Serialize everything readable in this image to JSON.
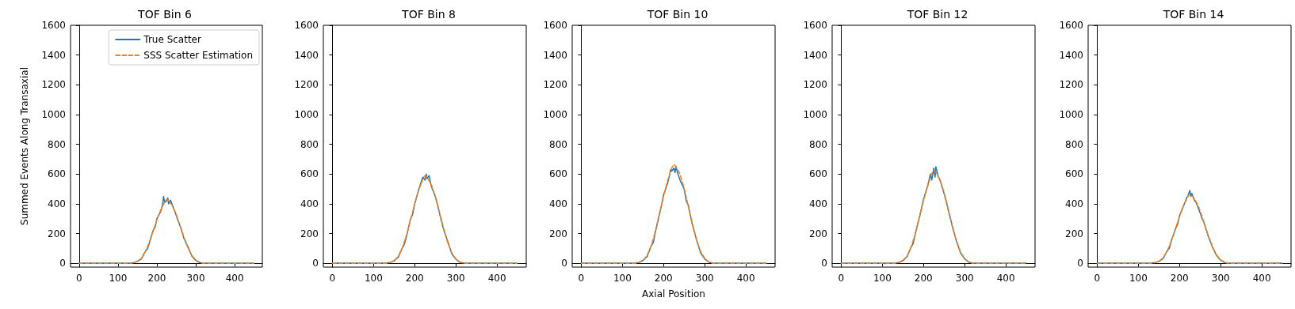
{
  "chart_data": [
    {
      "type": "line",
      "title": "TOF Bin 6",
      "ylabel": "Summed Events Along Transaxial",
      "xlim": [
        -22,
        471
      ],
      "xticks": [
        0,
        100,
        200,
        300,
        400
      ],
      "ylim": [
        -25,
        1600
      ],
      "yticks": [
        0,
        200,
        400,
        600,
        800,
        1000,
        1200,
        1400,
        1600
      ],
      "marker": "none",
      "legend": "top right",
      "series": [
        {
          "name": "True Scatter",
          "color": "#1f77b4",
          "line_style": "solid",
          "x": [
            0,
            100,
            130,
            140,
            150,
            160,
            170,
            175,
            180,
            190,
            195,
            200,
            210,
            215,
            217,
            220,
            225,
            228,
            230,
            235,
            240,
            250,
            255,
            260,
            270,
            280,
            290,
            300,
            310,
            320,
            350,
            449
          ],
          "values": [
            2,
            1,
            2,
            5,
            14,
            30,
            80,
            95,
            130,
            220,
            240,
            300,
            350,
            400,
            450,
            410,
            420,
            440,
            400,
            425,
            390,
            320,
            280,
            250,
            165,
            110,
            48,
            20,
            5,
            2,
            1,
            2
          ]
        },
        {
          "name": "SSS Scatter Estimation",
          "color": "#ff7f0e",
          "line_style": "dashed",
          "x": [
            0,
            100,
            130,
            140,
            150,
            160,
            170,
            180,
            190,
            200,
            210,
            220,
            225,
            230,
            240,
            250,
            260,
            270,
            280,
            290,
            300,
            310,
            320,
            350,
            449
          ],
          "values": [
            0,
            0,
            0,
            4,
            13,
            34,
            77,
            138,
            215,
            292,
            361,
            413,
            430,
            421,
            387,
            327,
            249,
            172,
            103,
            52,
            22,
            6,
            0,
            0,
            0
          ]
        }
      ]
    },
    {
      "type": "line",
      "title": "TOF Bin 8",
      "xlim": [
        -22,
        471
      ],
      "xticks": [
        0,
        100,
        200,
        300,
        400
      ],
      "ylim": [
        -25,
        1600
      ],
      "yticks": [
        0,
        200,
        400,
        600,
        800,
        1000,
        1200,
        1400,
        1600
      ],
      "marker": "none",
      "series": [
        {
          "color": "#1f77b4",
          "line_style": "solid",
          "x": [
            0,
            100,
            130,
            140,
            150,
            160,
            170,
            175,
            180,
            190,
            195,
            200,
            210,
            215,
            217,
            220,
            225,
            228,
            230,
            235,
            240,
            250,
            255,
            260,
            270,
            280,
            290,
            300,
            310,
            320,
            350,
            449
          ],
          "values": [
            2,
            1,
            2,
            6,
            18,
            42,
            105,
            130,
            180,
            300,
            330,
            400,
            500,
            540,
            560,
            580,
            560,
            600,
            570,
            590,
            520,
            450,
            400,
            340,
            230,
            150,
            65,
            28,
            7,
            2,
            1,
            2
          ]
        },
        {
          "color": "#ff7f0e",
          "line_style": "dashed",
          "x": [
            0,
            100,
            130,
            140,
            150,
            160,
            170,
            180,
            190,
            200,
            210,
            220,
            225,
            230,
            240,
            250,
            260,
            270,
            280,
            290,
            300,
            310,
            320,
            350,
            449
          ],
          "values": [
            0,
            0,
            0,
            5,
            18,
            47,
            106,
            189,
            295,
            401,
            495,
            567,
            590,
            578,
            531,
            449,
            342,
            236,
            141,
            71,
            30,
            8,
            0,
            0,
            0
          ]
        }
      ]
    },
    {
      "type": "line",
      "title": "TOF Bin 10",
      "xlabel": "Axial Position",
      "xlim": [
        -22,
        471
      ],
      "xticks": [
        0,
        100,
        200,
        300,
        400
      ],
      "ylim": [
        -25,
        1600
      ],
      "yticks": [
        0,
        200,
        400,
        600,
        800,
        1000,
        1200,
        1400,
        1600
      ],
      "marker": "none",
      "series": [
        {
          "color": "#1f77b4",
          "line_style": "solid",
          "x": [
            0,
            100,
            130,
            140,
            150,
            160,
            170,
            175,
            180,
            190,
            195,
            200,
            210,
            215,
            217,
            220,
            225,
            228,
            230,
            235,
            240,
            250,
            255,
            260,
            270,
            280,
            290,
            300,
            310,
            320,
            350,
            449
          ],
          "values": [
            2,
            1,
            2,
            6,
            20,
            45,
            118,
            140,
            210,
            330,
            390,
            460,
            540,
            600,
            630,
            620,
            640,
            610,
            650,
            600,
            560,
            500,
            420,
            390,
            260,
            160,
            70,
            30,
            8,
            2,
            1,
            2
          ]
        },
        {
          "color": "#ff7f0e",
          "line_style": "dashed",
          "x": [
            0,
            100,
            130,
            140,
            150,
            160,
            170,
            180,
            190,
            200,
            210,
            220,
            225,
            230,
            240,
            250,
            260,
            270,
            280,
            290,
            300,
            310,
            320,
            350,
            449
          ],
          "values": [
            0,
            0,
            0,
            6,
            20,
            53,
            119,
            213,
            333,
            452,
            558,
            643,
            665,
            651,
            599,
            506,
            385,
            266,
            159,
            80,
            34,
            9,
            0,
            0,
            0
          ]
        }
      ]
    },
    {
      "type": "line",
      "title": "TOF Bin 12",
      "xlim": [
        -22,
        471
      ],
      "xticks": [
        0,
        100,
        200,
        300,
        400
      ],
      "ylim": [
        -25,
        1600
      ],
      "yticks": [
        0,
        200,
        400,
        600,
        800,
        1000,
        1200,
        1400,
        1600
      ],
      "marker": "none",
      "series": [
        {
          "color": "#1f77b4",
          "line_style": "solid",
          "x": [
            0,
            100,
            130,
            140,
            150,
            160,
            170,
            175,
            180,
            190,
            195,
            200,
            210,
            215,
            217,
            220,
            225,
            228,
            230,
            235,
            240,
            250,
            255,
            260,
            270,
            280,
            290,
            300,
            310,
            320,
            350,
            449
          ],
          "values": [
            2,
            1,
            2,
            6,
            19,
            45,
            110,
            135,
            200,
            310,
            370,
            430,
            520,
            580,
            600,
            560,
            640,
            580,
            650,
            590,
            560,
            470,
            420,
            360,
            250,
            150,
            70,
            30,
            8,
            2,
            1,
            2
          ]
        },
        {
          "color": "#ff7f0e",
          "line_style": "dashed",
          "x": [
            0,
            100,
            130,
            140,
            150,
            160,
            170,
            180,
            190,
            200,
            210,
            220,
            225,
            230,
            240,
            250,
            260,
            270,
            280,
            290,
            300,
            310,
            320,
            350,
            449
          ],
          "values": [
            0,
            0,
            0,
            6,
            19,
            49,
            112,
            200,
            312,
            424,
            524,
            604,
            625,
            612,
            562,
            475,
            362,
            250,
            150,
            76,
            32,
            9,
            0,
            0,
            0
          ]
        }
      ]
    },
    {
      "type": "line",
      "title": "TOF Bin 14",
      "xlim": [
        -22,
        471
      ],
      "xticks": [
        0,
        100,
        200,
        300,
        400
      ],
      "ylim": [
        -25,
        1600
      ],
      "yticks": [
        0,
        200,
        400,
        600,
        800,
        1000,
        1200,
        1400,
        1600
      ],
      "marker": "none",
      "series": [
        {
          "color": "#1f77b4",
          "line_style": "solid",
          "x": [
            0,
            100,
            130,
            140,
            150,
            160,
            170,
            175,
            180,
            190,
            195,
            200,
            210,
            215,
            217,
            220,
            225,
            228,
            230,
            235,
            240,
            250,
            255,
            260,
            270,
            280,
            290,
            300,
            310,
            320,
            350,
            449
          ],
          "values": [
            2,
            1,
            2,
            5,
            14,
            32,
            85,
            100,
            150,
            230,
            260,
            320,
            390,
            420,
            440,
            450,
            490,
            450,
            470,
            430,
            410,
            340,
            300,
            270,
            180,
            110,
            52,
            22,
            6,
            2,
            1,
            2
          ]
        },
        {
          "color": "#ff7f0e",
          "line_style": "dashed",
          "x": [
            0,
            100,
            130,
            140,
            150,
            160,
            170,
            180,
            190,
            200,
            210,
            220,
            225,
            230,
            240,
            250,
            260,
            270,
            280,
            290,
            300,
            310,
            320,
            350,
            449
          ],
          "values": [
            0,
            0,
            0,
            4,
            14,
            37,
            83,
            149,
            232,
            316,
            390,
            447,
            465,
            455,
            418,
            354,
            269,
            186,
            111,
            56,
            24,
            6,
            0,
            0,
            0
          ]
        }
      ]
    }
  ]
}
